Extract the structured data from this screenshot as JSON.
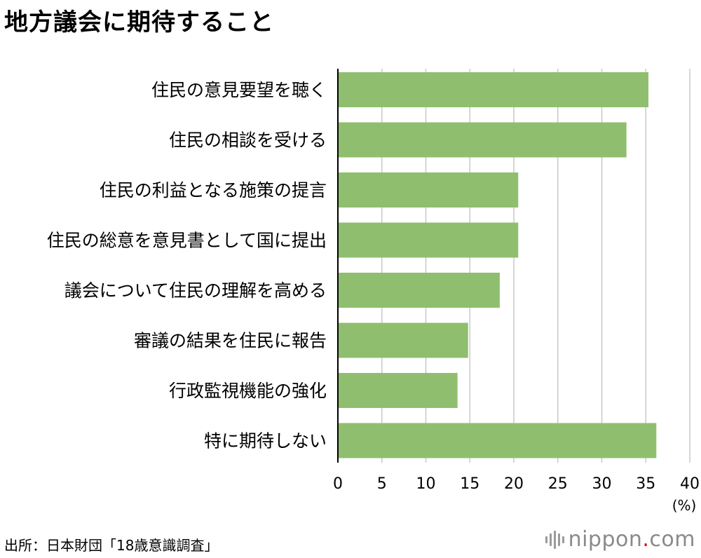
{
  "title": "地方議会に期待すること",
  "source": "出所：日本財団「18歳意識調査」",
  "brand": {
    "name": "nippon",
    "dot": ".",
    "tld": "com",
    "logo_icon": "sound-bars-icon"
  },
  "colors": {
    "bar": "#8fbf6e",
    "grid": "#c8c8c8",
    "axis": "#000000"
  },
  "chart_data": {
    "type": "bar",
    "orientation": "horizontal",
    "title": "地方議会に期待すること",
    "categories": [
      "住民の意見要望を聴く",
      "住民の相談を受ける",
      "住民の利益となる施策の提言",
      "住民の総意を意見書として国に提出",
      "議会について住民の理解を高める",
      "審議の結果を住民に報告",
      "行政監視機能の強化",
      "特に期待しない"
    ],
    "values": [
      35.3,
      32.8,
      20.5,
      20.5,
      18.4,
      14.8,
      13.6,
      36.2
    ],
    "xlim": [
      0,
      40
    ],
    "xticks": [
      "0",
      "5",
      "10",
      "15",
      "20",
      "25",
      "30",
      "35",
      "40"
    ],
    "xunit": "(%)",
    "grid": true
  }
}
